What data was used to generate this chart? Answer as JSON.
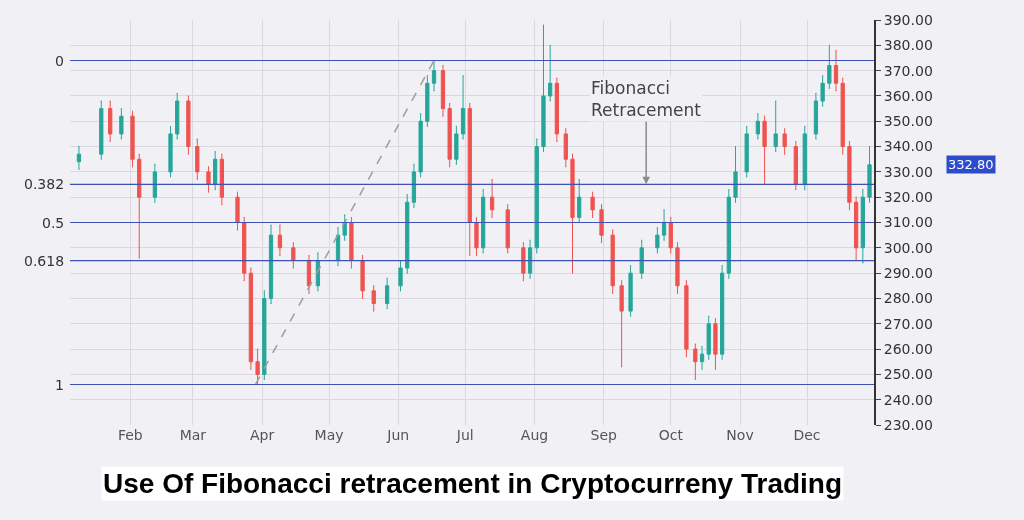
{
  "chart_data": {
    "type": "candlestick",
    "title": "Use Of Fibonacci retracement in Cryptocurreny Trading",
    "x": [
      "--01-09",
      "--01-19",
      "--01-23",
      "--01-28",
      "--02-02",
      "--02-05",
      "--02-12",
      "--02-19",
      "--02-22",
      "--02-27",
      "--03-03",
      "--03-08",
      "--03-11",
      "--03-14",
      "--03-21",
      "--03-24",
      "--03-27",
      "--03-30",
      "--04-02",
      "--04-05",
      "--04-09",
      "--04-15",
      "--04-22",
      "--04-26",
      "--05-05",
      "--05-08",
      "--05-11",
      "--05-16",
      "--05-21",
      "--05-27",
      "--06-02",
      "--06-05",
      "--06-08",
      "--06-11",
      "--06-14",
      "--06-17",
      "--06-21",
      "--06-24",
      "--06-27",
      "--06-30",
      "--07-03",
      "--07-06",
      "--07-09",
      "--07-13",
      "--07-20",
      "--07-27",
      "--07-30",
      "--08-02",
      "--08-05",
      "--08-08",
      "--08-11",
      "--08-15",
      "--08-18",
      "--08-21",
      "--08-27",
      "--08-31",
      "--09-05",
      "--09-09",
      "--09-13",
      "--09-18",
      "--09-25",
      "--09-28",
      "--10-01",
      "--10-04",
      "--10-08",
      "--10-12",
      "--10-15",
      "--10-18",
      "--10-21",
      "--10-24",
      "--10-27",
      "--10-30",
      "--11-04",
      "--11-09",
      "--11-12",
      "--11-17",
      "--11-21",
      "--11-26",
      "--11-30",
      "--12-05",
      "--12-08",
      "--12-11",
      "--12-14",
      "--12-17",
      "--12-20",
      "--12-23",
      "--12-26",
      "--12-29"
    ],
    "ohlc": [
      [
        334,
        340,
        331,
        337
      ],
      [
        337,
        358,
        335,
        355
      ],
      [
        355,
        358,
        342,
        345
      ],
      [
        345,
        355,
        343,
        352
      ],
      [
        352,
        354,
        332,
        335
      ],
      [
        335,
        337,
        296,
        320
      ],
      [
        320,
        333,
        318,
        330
      ],
      [
        330,
        348,
        328,
        345
      ],
      [
        345,
        361,
        343,
        358
      ],
      [
        358,
        360,
        337,
        340
      ],
      [
        340,
        343,
        327,
        330
      ],
      [
        330,
        332,
        322,
        325
      ],
      [
        325,
        338,
        323,
        335
      ],
      [
        335,
        337,
        317,
        320
      ],
      [
        320,
        322,
        307,
        310
      ],
      [
        310,
        312,
        287,
        290
      ],
      [
        290,
        292,
        252,
        255
      ],
      [
        255,
        260,
        246,
        250
      ],
      [
        250,
        283,
        248,
        280
      ],
      [
        280,
        309,
        278,
        305
      ],
      [
        305,
        309,
        297,
        300
      ],
      [
        300,
        302,
        292,
        295
      ],
      [
        295,
        297,
        282,
        285
      ],
      [
        285,
        298,
        283,
        295
      ],
      [
        295,
        308,
        293,
        305
      ],
      [
        305,
        313,
        303,
        310
      ],
      [
        310,
        312,
        292,
        295
      ],
      [
        295,
        297,
        280,
        283
      ],
      [
        283,
        285,
        275,
        278
      ],
      [
        278,
        288,
        276,
        285
      ],
      [
        285,
        295,
        283,
        292
      ],
      [
        292,
        321,
        290,
        318
      ],
      [
        318,
        333,
        316,
        330
      ],
      [
        330,
        353,
        328,
        350
      ],
      [
        350,
        368,
        348,
        365
      ],
      [
        365,
        374,
        362,
        370
      ],
      [
        370,
        372,
        352,
        355
      ],
      [
        355,
        357,
        332,
        335
      ],
      [
        335,
        348,
        333,
        345
      ],
      [
        345,
        368,
        343,
        355
      ],
      [
        355,
        357,
        297,
        310
      ],
      [
        310,
        312,
        297,
        300
      ],
      [
        300,
        323,
        298,
        320
      ],
      [
        320,
        327,
        312,
        315
      ],
      [
        315,
        317,
        298,
        300
      ],
      [
        300,
        302,
        287,
        290
      ],
      [
        290,
        303,
        288,
        300
      ],
      [
        300,
        343,
        298,
        340
      ],
      [
        340,
        388,
        338,
        360
      ],
      [
        360,
        380,
        358,
        365
      ],
      [
        365,
        367,
        342,
        345
      ],
      [
        345,
        347,
        332,
        335
      ],
      [
        335,
        337,
        290,
        312
      ],
      [
        312,
        327,
        310,
        320
      ],
      [
        320,
        322,
        312,
        315
      ],
      [
        315,
        317,
        302,
        305
      ],
      [
        305,
        307,
        282,
        285
      ],
      [
        285,
        287,
        253,
        275
      ],
      [
        275,
        293,
        273,
        290
      ],
      [
        290,
        303,
        288,
        300
      ],
      [
        300,
        308,
        298,
        305
      ],
      [
        305,
        315,
        303,
        310
      ],
      [
        310,
        312,
        298,
        300
      ],
      [
        300,
        302,
        282,
        285
      ],
      [
        285,
        287,
        257,
        260
      ],
      [
        260,
        262,
        248,
        255
      ],
      [
        255,
        261,
        252,
        258
      ],
      [
        258,
        273,
        256,
        270
      ],
      [
        270,
        272,
        252,
        258
      ],
      [
        258,
        293,
        256,
        290
      ],
      [
        290,
        323,
        288,
        320
      ],
      [
        320,
        340,
        318,
        330
      ],
      [
        330,
        348,
        328,
        345
      ],
      [
        345,
        353,
        343,
        350
      ],
      [
        350,
        352,
        325,
        340
      ],
      [
        340,
        358,
        338,
        345
      ],
      [
        345,
        347,
        337,
        340
      ],
      [
        340,
        342,
        323,
        325
      ],
      [
        325,
        348,
        323,
        345
      ],
      [
        345,
        361,
        343,
        358
      ],
      [
        358,
        368,
        356,
        365
      ],
      [
        365,
        380,
        363,
        372
      ],
      [
        372,
        378,
        362,
        365
      ],
      [
        365,
        367,
        337,
        340
      ],
      [
        340,
        342,
        315,
        318
      ],
      [
        318,
        320,
        295,
        300
      ],
      [
        300,
        323,
        294,
        320
      ],
      [
        320,
        340,
        318,
        332.8
      ]
    ],
    "series": [
      {
        "type": "line",
        "color": "#9e9e9e",
        "line_style": "dashed",
        "x": [
          "--03-29",
          "--06-17"
        ],
        "values": [
          246,
          374
        ]
      }
    ],
    "xlim": [
      "--01-05",
      "--12-31"
    ],
    "xticks": [
      {
        "value": "--02-01",
        "label": "Feb"
      },
      {
        "value": "--03-01",
        "label": "Mar"
      },
      {
        "value": "--04-01",
        "label": "Apr"
      },
      {
        "value": "--05-01",
        "label": "May"
      },
      {
        "value": "--06-01",
        "label": "Jun"
      },
      {
        "value": "--07-01",
        "label": "Jul"
      },
      {
        "value": "--08-01",
        "label": "Aug"
      },
      {
        "value": "--09-01",
        "label": "Sep"
      },
      {
        "value": "--10-01",
        "label": "Oct"
      },
      {
        "value": "--11-01",
        "label": "Nov"
      },
      {
        "value": "--12-01",
        "label": "Dec"
      }
    ],
    "ylim": [
      230,
      390
    ],
    "yticks": [
      {
        "value": 230,
        "label": "230.00"
      },
      {
        "value": 240,
        "label": "240.00"
      },
      {
        "value": 250,
        "label": "250.00"
      },
      {
        "value": 260,
        "label": "260.00"
      },
      {
        "value": 270,
        "label": "270.00"
      },
      {
        "value": 280,
        "label": "280.00"
      },
      {
        "value": 290,
        "label": "290.00"
      },
      {
        "value": 300,
        "label": "300.00"
      },
      {
        "value": 310,
        "label": "310.00"
      },
      {
        "value": 320,
        "label": "320.00"
      },
      {
        "value": 330,
        "label": "330.00"
      },
      {
        "value": 340,
        "label": "340.00"
      },
      {
        "value": 350,
        "label": "350.00"
      },
      {
        "value": 360,
        "label": "360.00"
      },
      {
        "value": 370,
        "label": "370.00"
      },
      {
        "value": 380,
        "label": "380.00"
      },
      {
        "value": 390,
        "label": "390.00"
      }
    ],
    "ref_lines": [
      {
        "axis": "y",
        "value": 374,
        "color": "#3f51b5"
      },
      {
        "axis": "y",
        "value": 325.1,
        "color": "#3f51b5"
      },
      {
        "axis": "y",
        "value": 310,
        "color": "#3f51b5"
      },
      {
        "axis": "y",
        "value": 294.9,
        "color": "#3f51b5"
      },
      {
        "axis": "y",
        "value": 246,
        "color": "#3f51b5"
      }
    ],
    "annotations": [
      {
        "text": "Fibonacci Retracement",
        "x": "--09-20",
        "y": 325.1
      },
      "332.80",
      "0",
      "0.382",
      "0.5",
      "0.618",
      "1"
    ],
    "grid": true
  }
}
